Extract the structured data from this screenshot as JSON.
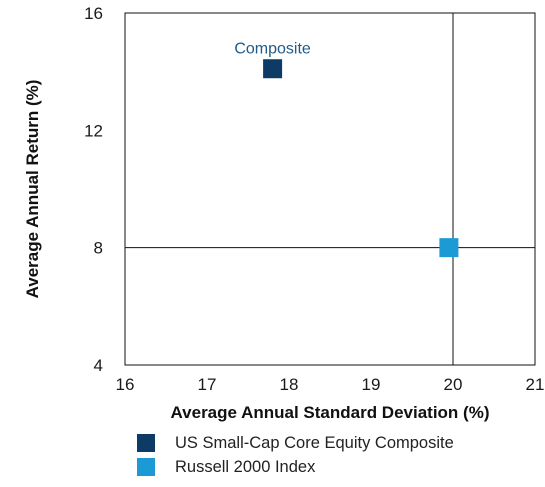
{
  "chart_data": {
    "type": "scatter",
    "xlabel": "Average Annual Standard Deviation (%)",
    "ylabel": "Average Annual Return (%)",
    "xlim": [
      16,
      21
    ],
    "ylim": [
      4,
      16
    ],
    "x_ticks": [
      "16",
      "17",
      "18",
      "19",
      "20",
      "21"
    ],
    "y_ticks": [
      "4",
      "8",
      "12",
      "16"
    ],
    "reference_lines": {
      "x": 20,
      "y": 8
    },
    "series": [
      {
        "name": "US Small-Cap Core Equity Composite",
        "color": "#0d3b66",
        "x": 17.8,
        "y": 14.1,
        "annotation": "Composite",
        "marker": "square"
      },
      {
        "name": "Russell 2000 Index",
        "color": "#1b9ad6",
        "x": 19.95,
        "y": 8.0,
        "marker": "square"
      }
    ],
    "grid": false,
    "legend": "bottom"
  }
}
